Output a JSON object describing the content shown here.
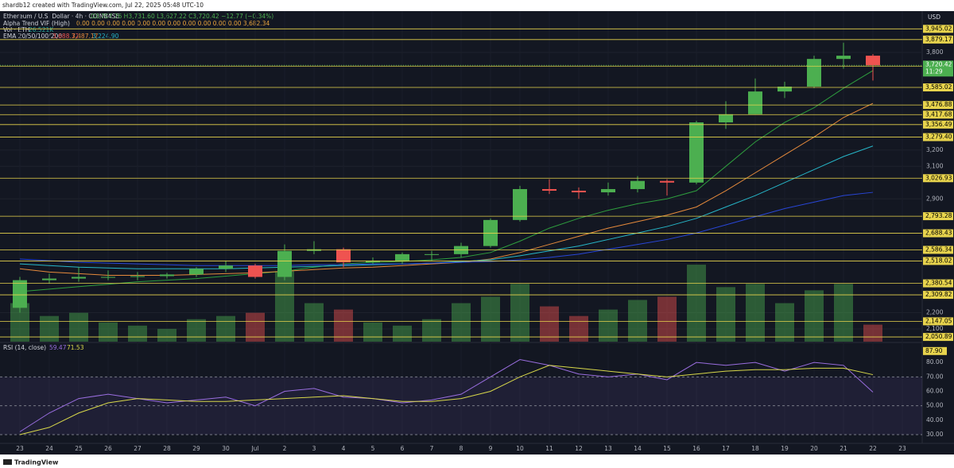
{
  "header": {
    "attribution": "shardb12 created with TradingView.com, Jul 22, 2025 05:48 UTC-10",
    "currency": "USD"
  },
  "legend": {
    "symbol": "Ethereum / U.S. Dollar · 4h · COINBASE",
    "ohlc": "O3,707.76 H3,731.60 L3,627.22 C3,720.42 −12.77 (−0.34%)",
    "alpha_trend": "Alpha Trend VIP (High)",
    "alpha_values": "0.00 0.00 0.00 0.00 0.00 0.00 0.00 0.00 0.00 0.00 0.00 3,682.34",
    "volume": "Vol · ETH",
    "volume_value": "26.521K",
    "ema": "EMA 20/50/100/200",
    "ema_values": [
      "3,688.72",
      "3,487.17",
      "3,224.90"
    ]
  },
  "chart_data": [
    {
      "type": "candlestick",
      "categories": [
        "23",
        "24",
        "25",
        "26",
        "27",
        "28",
        "29",
        "30",
        "Jul",
        "2",
        "3",
        "4",
        "5",
        "6",
        "7",
        "8",
        "9",
        "10",
        "11",
        "12",
        "13",
        "14",
        "15",
        "16",
        "17",
        "18",
        "19",
        "20",
        "21",
        "22",
        "23"
      ],
      "open": [
        2230,
        2400,
        2410,
        2420,
        2420,
        2425,
        2435,
        2470,
        2490,
        2420,
        2580,
        2590,
        2510,
        2520,
        2560,
        2560,
        2610,
        2770,
        2960,
        2950,
        2940,
        2960,
        3010,
        3000,
        3370,
        3420,
        3560,
        3590,
        3760,
        3780,
        null
      ],
      "high": [
        2420,
        2440,
        2480,
        2460,
        2450,
        2445,
        2480,
        2520,
        2500,
        2620,
        2640,
        2600,
        2540,
        2570,
        2580,
        2630,
        2780,
        2980,
        3020,
        2970,
        3000,
        3040,
        3020,
        3380,
        3500,
        3640,
        3620,
        3780,
        3860,
        3790,
        null
      ],
      "low": [
        2200,
        2380,
        2390,
        2400,
        2400,
        2410,
        2420,
        2450,
        2410,
        2400,
        2560,
        2480,
        2500,
        2500,
        2520,
        2540,
        2600,
        2760,
        2930,
        2900,
        2920,
        2940,
        2920,
        2990,
        3330,
        3420,
        3520,
        3580,
        3700,
        3627,
        null
      ],
      "close": [
        2400,
        2410,
        2420,
        2420,
        2425,
        2435,
        2470,
        2490,
        2420,
        2580,
        2590,
        2510,
        2520,
        2560,
        2560,
        2610,
        2770,
        2960,
        2950,
        2940,
        2960,
        3010,
        3000,
        3370,
        3420,
        3560,
        3590,
        3760,
        3780,
        3720,
        null
      ],
      "up_color": "#4caf50",
      "down_color": "#ef5350",
      "ylim": [
        2022,
        4054
      ],
      "yticks": [
        {
          "value": 2100,
          "label": "2,100"
        },
        {
          "value": 2200,
          "label": "2,200"
        },
        {
          "value": 2900,
          "label": "2,900"
        },
        {
          "value": 3100,
          "label": "3,100"
        },
        {
          "value": 3200,
          "label": "3,200"
        },
        {
          "value": 3800,
          "label": "3,800"
        }
      ],
      "levels": [
        {
          "value": 3945.02,
          "label": "3,945.02"
        },
        {
          "value": 3879.17,
          "label": "3,879.17"
        },
        {
          "value": 3715.88,
          "label": "3,715.88"
        },
        {
          "value": 3585.02,
          "label": "3,585.02"
        },
        {
          "value": 3476.88,
          "label": "3,476.88"
        },
        {
          "value": 3417.68,
          "label": "3,417.68"
        },
        {
          "value": 3356.49,
          "label": "3,356.49"
        },
        {
          "value": 3279.4,
          "label": "3,279.40"
        },
        {
          "value": 3026.93,
          "label": "3,026.93"
        },
        {
          "value": 2793.28,
          "label": "2,793.28"
        },
        {
          "value": 2688.43,
          "label": "2,688.43"
        },
        {
          "value": 2586.34,
          "label": "2,586.34"
        },
        {
          "value": 2518.02,
          "label": "2,518.02"
        },
        {
          "value": 2380.54,
          "label": "2,380.54"
        },
        {
          "value": 2309.82,
          "label": "2,309.82"
        },
        {
          "value": 2147.05,
          "label": "2,147.05"
        },
        {
          "value": 2050.89,
          "label": "2,050.89"
        }
      ],
      "level_color": "#e8d44d",
      "last_price": {
        "value": 3720.42,
        "label": "3,720.42"
      },
      "countdown": "11:29",
      "series": [
        {
          "color": "#2e9e3e",
          "values": [
            2330,
            2345,
            2360,
            2375,
            2390,
            2400,
            2410,
            2425,
            2440,
            2455,
            2480,
            2500,
            2510,
            2515,
            2525,
            2540,
            2570,
            2640,
            2720,
            2780,
            2830,
            2870,
            2900,
            2950,
            3100,
            3250,
            3370,
            3460,
            3580,
            3688.72,
            null
          ]
        },
        {
          "color": "#e68a3c",
          "values": [
            2470,
            2450,
            2440,
            2430,
            2430,
            2430,
            2435,
            2440,
            2445,
            2455,
            2465,
            2475,
            2480,
            2490,
            2500,
            2510,
            2530,
            2570,
            2620,
            2670,
            2720,
            2760,
            2800,
            2850,
            2950,
            3060,
            3170,
            3280,
            3400,
            3487.17,
            null
          ]
        },
        {
          "color": "#26b6c8",
          "values": [
            2500,
            2490,
            2480,
            2475,
            2470,
            2470,
            2470,
            2470,
            2475,
            2480,
            2485,
            2490,
            2495,
            2500,
            2505,
            2515,
            2525,
            2550,
            2580,
            2610,
            2650,
            2690,
            2730,
            2780,
            2850,
            2920,
            3000,
            3080,
            3160,
            3224.9,
            null
          ]
        },
        {
          "color": "#2846d8",
          "values": [
            2530,
            2520,
            2510,
            2505,
            2500,
            2495,
            2490,
            2490,
            2490,
            2490,
            2495,
            2495,
            2500,
            2500,
            2505,
            2510,
            2515,
            2525,
            2540,
            2560,
            2590,
            2620,
            2650,
            2690,
            2740,
            2790,
            2840,
            2880,
            2920,
            2940,
            null
          ]
        }
      ],
      "volume": {
        "values": [
          60,
          40,
          45,
          30,
          25,
          20,
          35,
          40,
          45,
          110,
          60,
          50,
          30,
          25,
          35,
          60,
          70,
          90,
          55,
          40,
          50,
          65,
          70,
          120,
          85,
          90,
          60,
          80,
          90,
          26.521,
          null
        ],
        "max": 130
      }
    },
    {
      "type": "line",
      "title": "RSI (14, close)",
      "legend_values": [
        59.47,
        71.53
      ],
      "series": [
        {
          "color": "#9a6ee0",
          "values": [
            32,
            45,
            55,
            58,
            55,
            52,
            54,
            56,
            50,
            60,
            62,
            56,
            55,
            52,
            54,
            58,
            70,
            82,
            78,
            72,
            70,
            72,
            68,
            80,
            78,
            80,
            74,
            80,
            78,
            59.47,
            null
          ]
        },
        {
          "color": "#d8d84a",
          "values": [
            30,
            35,
            45,
            52,
            55,
            54,
            53,
            53,
            54,
            55,
            56,
            57,
            55,
            53,
            53,
            55,
            60,
            70,
            78,
            76,
            74,
            72,
            70,
            72,
            74,
            75,
            75,
            76,
            76,
            71.53,
            null
          ]
        }
      ],
      "ylim": [
        25.6,
        93.3
      ],
      "yticks": [
        {
          "value": 30,
          "label": "30.00"
        },
        {
          "value": 40,
          "label": "40.00"
        },
        {
          "value": 50,
          "label": "50.00"
        },
        {
          "value": 60,
          "label": "60.00"
        },
        {
          "value": 70,
          "label": "70.00"
        },
        {
          "value": 80,
          "label": "80.00"
        }
      ],
      "bands": [
        70,
        50,
        30
      ],
      "marker": {
        "value": 87.9,
        "label": "87.90"
      }
    }
  ],
  "footer": {
    "brand": "TradingView"
  }
}
